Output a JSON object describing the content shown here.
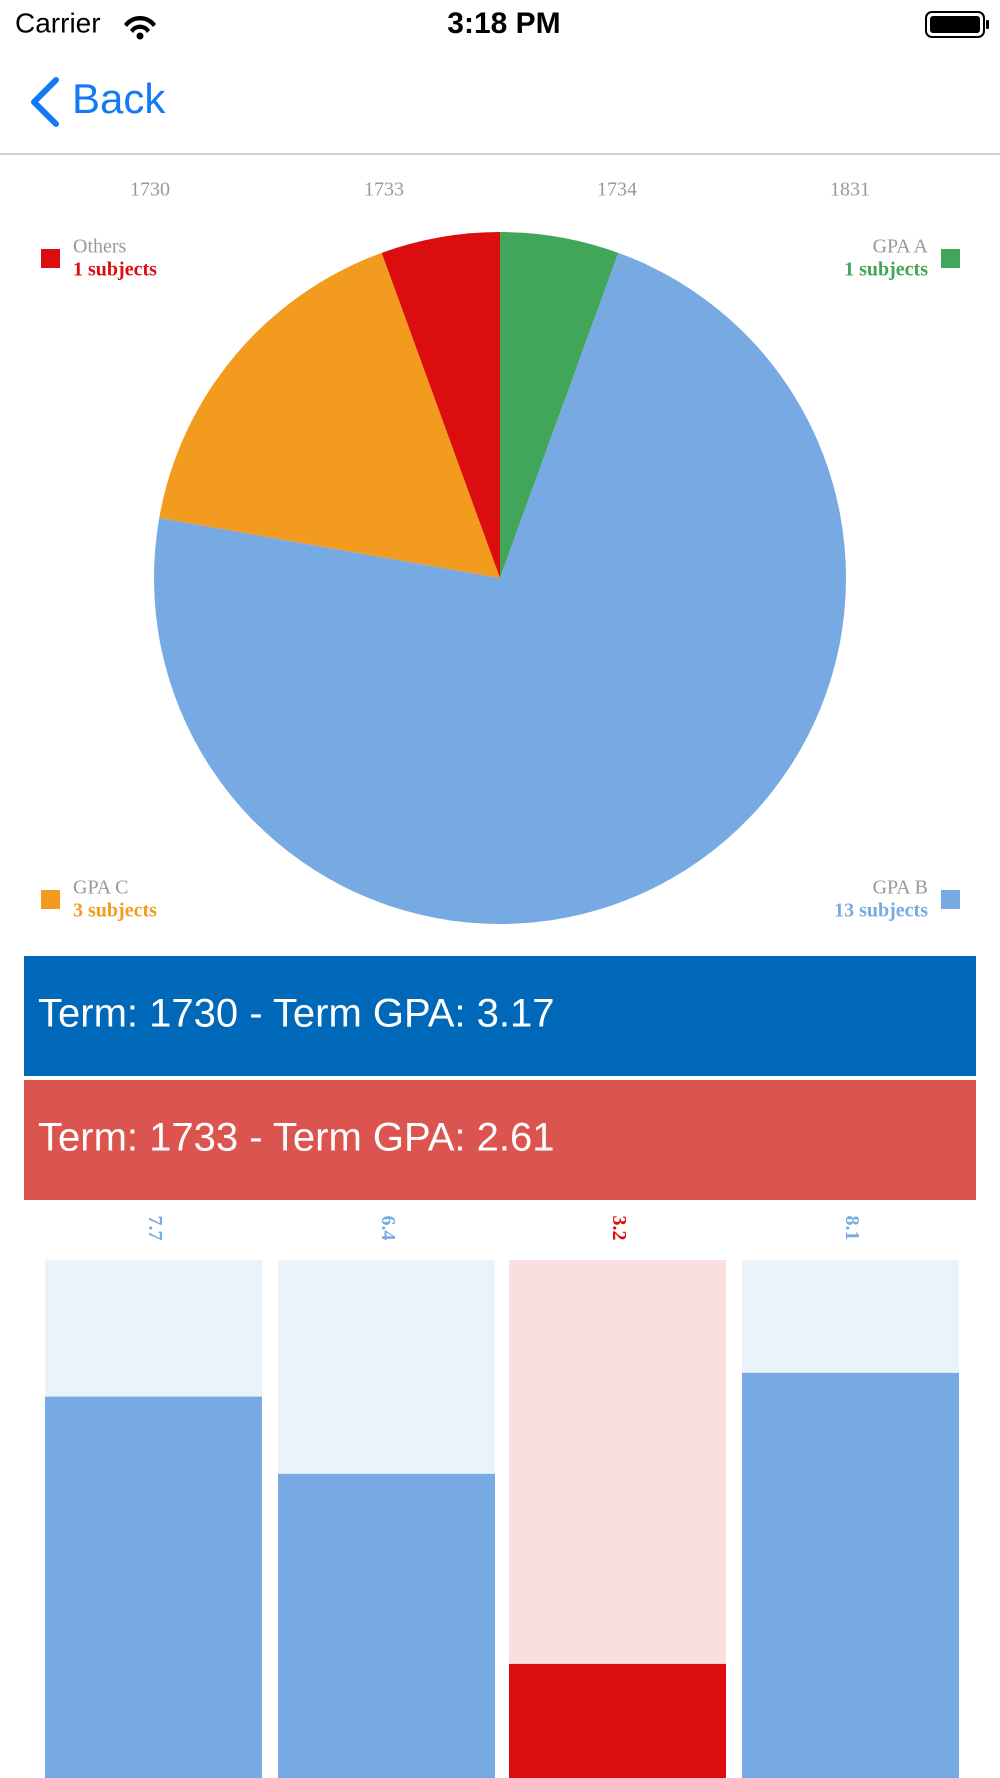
{
  "status_bar": {
    "carrier": "Carrier",
    "time": "3:18 PM"
  },
  "nav": {
    "back": "Back"
  },
  "term_labels": [
    "1730",
    "1733",
    "1734",
    "1831"
  ],
  "chart_data": [
    {
      "type": "pie",
      "categories": [
        "GPA A",
        "GPA B",
        "GPA C",
        "Others"
      ],
      "values": [
        1,
        13,
        3,
        1
      ],
      "value_labels": [
        "1 subjects",
        "13 subjects",
        "3 subjects",
        "1 subjects"
      ],
      "colors": [
        "#41a65a",
        "#77aae2",
        "#f29b1f",
        "#dc0d0e"
      ],
      "legend_positions": [
        "top-right",
        "bottom-right",
        "bottom-left",
        "top-left"
      ]
    },
    {
      "type": "bar",
      "values": [
        7.7,
        6.4,
        3.2,
        8.1
      ],
      "colors": [
        "#77aae2",
        "#77aae2",
        "#dc0d0e",
        "#77aae2"
      ],
      "background_colors": [
        "#eaf2fa",
        "#eaf2fa",
        "#fadfe0",
        "#eaf2fa"
      ],
      "ylim": [
        0,
        10
      ]
    }
  ],
  "term_rows": [
    {
      "text": "Term: 1730 - Term GPA: 3.17",
      "color": "#0068b8"
    },
    {
      "text": "Term: 1733 - Term GPA: 2.61",
      "color": "#dc5450"
    }
  ]
}
